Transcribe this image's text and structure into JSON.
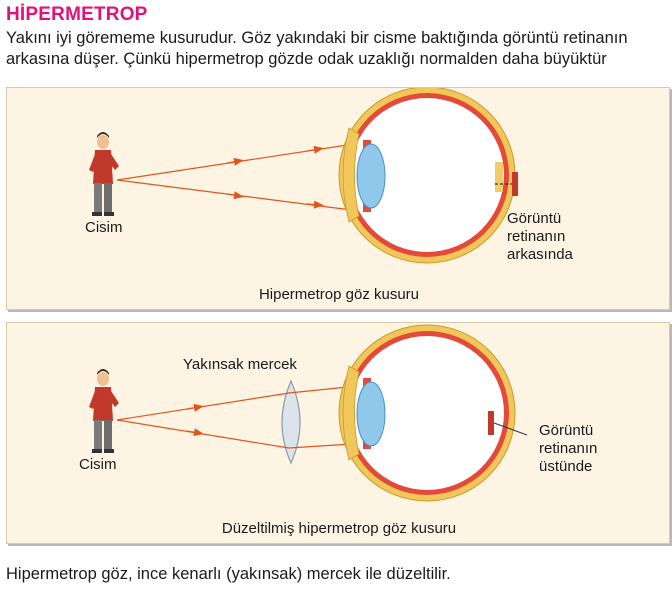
{
  "title": "HİPERMETROP",
  "intro": "Yakını iyi görememe kusurudur. Göz yakındaki bir cisme baktığında görüntü retinanın arkasına düşer. Çünkü hipermetrop gözde odak uzaklığı normalden daha büyüktür",
  "panel1": {
    "object_label": "Cisim",
    "image_label_lines": [
      "Görüntü",
      "retinanın",
      "arkasında"
    ],
    "caption": "Hipermetrop göz kusuru"
  },
  "panel2": {
    "object_label": "Cisim",
    "lens_label": "Yakınsak mercek",
    "image_label_lines": [
      "Görüntü",
      "retinanın",
      "üstünde"
    ],
    "caption": "Düzeltilmiş hipermetrop göz kusuru"
  },
  "footer": "Hipermetrop göz, ince kenarlı (yakınsak) mercek ile düzeltilir.",
  "colors": {
    "title": "#e0127a",
    "ray": "#e0561b",
    "panel_bg": "#fdf4e4",
    "sclera": "#f2c75a",
    "retina": "#e34a3a",
    "lens": "#8fc8ea"
  }
}
